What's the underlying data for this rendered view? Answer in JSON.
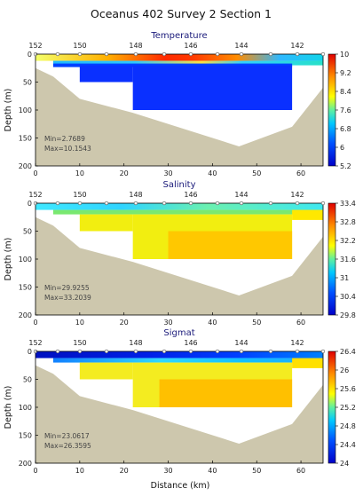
{
  "figure_title": "Oceanus 402 Survey 2 Section 1",
  "x_axis_label": "Distance (km)",
  "chart_data": [
    {
      "type": "heatmap",
      "title": "Temperature",
      "ylabel": "Depth (m)",
      "xlim": [
        0,
        65
      ],
      "ylim": [
        200,
        0
      ],
      "x_ticks": [
        0,
        10,
        20,
        30,
        40,
        50,
        60
      ],
      "y_ticks": [
        0,
        50,
        100,
        150,
        200
      ],
      "station_ticks": [
        "152",
        "150",
        "148",
        "146",
        "144",
        "142"
      ],
      "colorbar_ticks": [
        "10",
        "9.2",
        "8.4",
        "7.6",
        "6.8",
        "6",
        "5.2"
      ],
      "colorbar_range": [
        5.2,
        10
      ],
      "stat_min": "Min=2.7689",
      "stat_max": "Max=10.1543"
    },
    {
      "type": "heatmap",
      "title": "Salinity",
      "ylabel": "Depth (m)",
      "xlim": [
        0,
        65
      ],
      "ylim": [
        200,
        0
      ],
      "x_ticks": [
        0,
        10,
        20,
        30,
        40,
        50,
        60
      ],
      "y_ticks": [
        0,
        50,
        100,
        150,
        200
      ],
      "station_ticks": [
        "152",
        "150",
        "148",
        "146",
        "144",
        "142"
      ],
      "colorbar_ticks": [
        "33.4",
        "32.8",
        "32.2",
        "31.6",
        "31",
        "30.4",
        "29.8"
      ],
      "colorbar_range": [
        29.8,
        33.4
      ],
      "stat_min": "Min=29.9255",
      "stat_max": "Max=33.2039"
    },
    {
      "type": "heatmap",
      "title": "Sigmat",
      "ylabel": "Depth (m)",
      "xlim": [
        0,
        65
      ],
      "ylim": [
        200,
        0
      ],
      "x_ticks": [
        0,
        10,
        20,
        30,
        40,
        50,
        60
      ],
      "y_ticks": [
        0,
        50,
        100,
        150,
        200
      ],
      "station_ticks": [
        "152",
        "150",
        "148",
        "146",
        "144",
        "142"
      ],
      "colorbar_ticks": [
        "26.4",
        "26",
        "25.6",
        "25.2",
        "24.8",
        "24.4",
        "24"
      ],
      "colorbar_range": [
        24,
        26.4
      ],
      "stat_min": "Min=23.0617",
      "stat_max": "Max=26.3595"
    }
  ]
}
